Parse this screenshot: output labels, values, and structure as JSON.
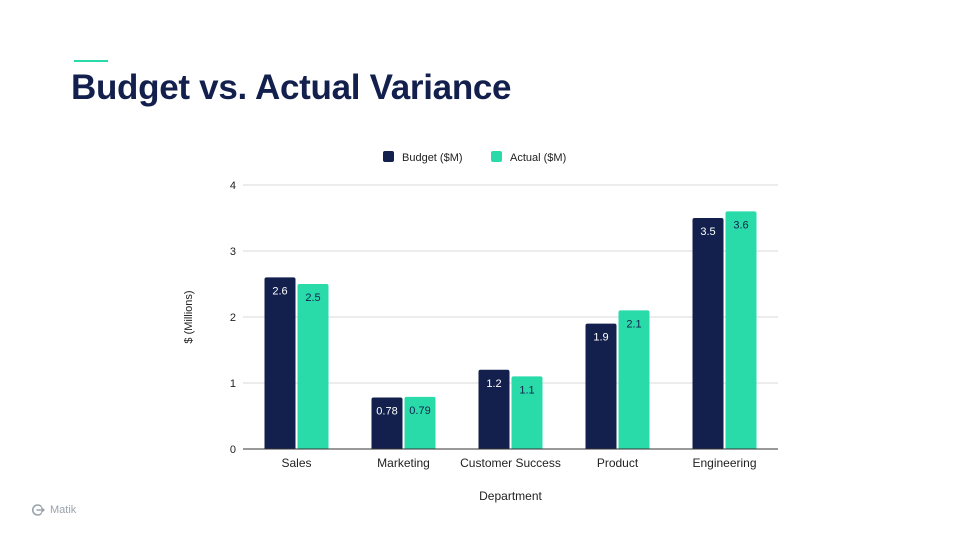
{
  "slide": {
    "title": "Budget vs. Actual Variance",
    "brand_name": "Matik"
  },
  "colors": {
    "budget": "#13204d",
    "actual": "#2adbaa",
    "grid": "#d9d9d9",
    "axis": "#333333",
    "text": "#222222"
  },
  "chart_data": {
    "type": "bar",
    "categories": [
      "Sales",
      "Marketing",
      "Customer Success",
      "Product",
      "Engineering"
    ],
    "series": [
      {
        "name": "Budget ($M)",
        "values": [
          2.6,
          0.78,
          1.2,
          1.9,
          3.5
        ],
        "labels": [
          "2.6",
          "0.78",
          "1.2",
          "1.9",
          "3.5"
        ]
      },
      {
        "name": "Actual ($M)",
        "values": [
          2.5,
          0.79,
          1.1,
          2.1,
          3.6
        ],
        "labels": [
          "2.5",
          "0.79",
          "1.1",
          "2.1",
          "3.6"
        ]
      }
    ],
    "xlabel": "Department",
    "ylabel": "$ (Millions)",
    "ylim": [
      0,
      4
    ],
    "yticks": [
      "0",
      "1",
      "2",
      "3",
      "4"
    ],
    "grid": true,
    "legend": "top-center"
  }
}
